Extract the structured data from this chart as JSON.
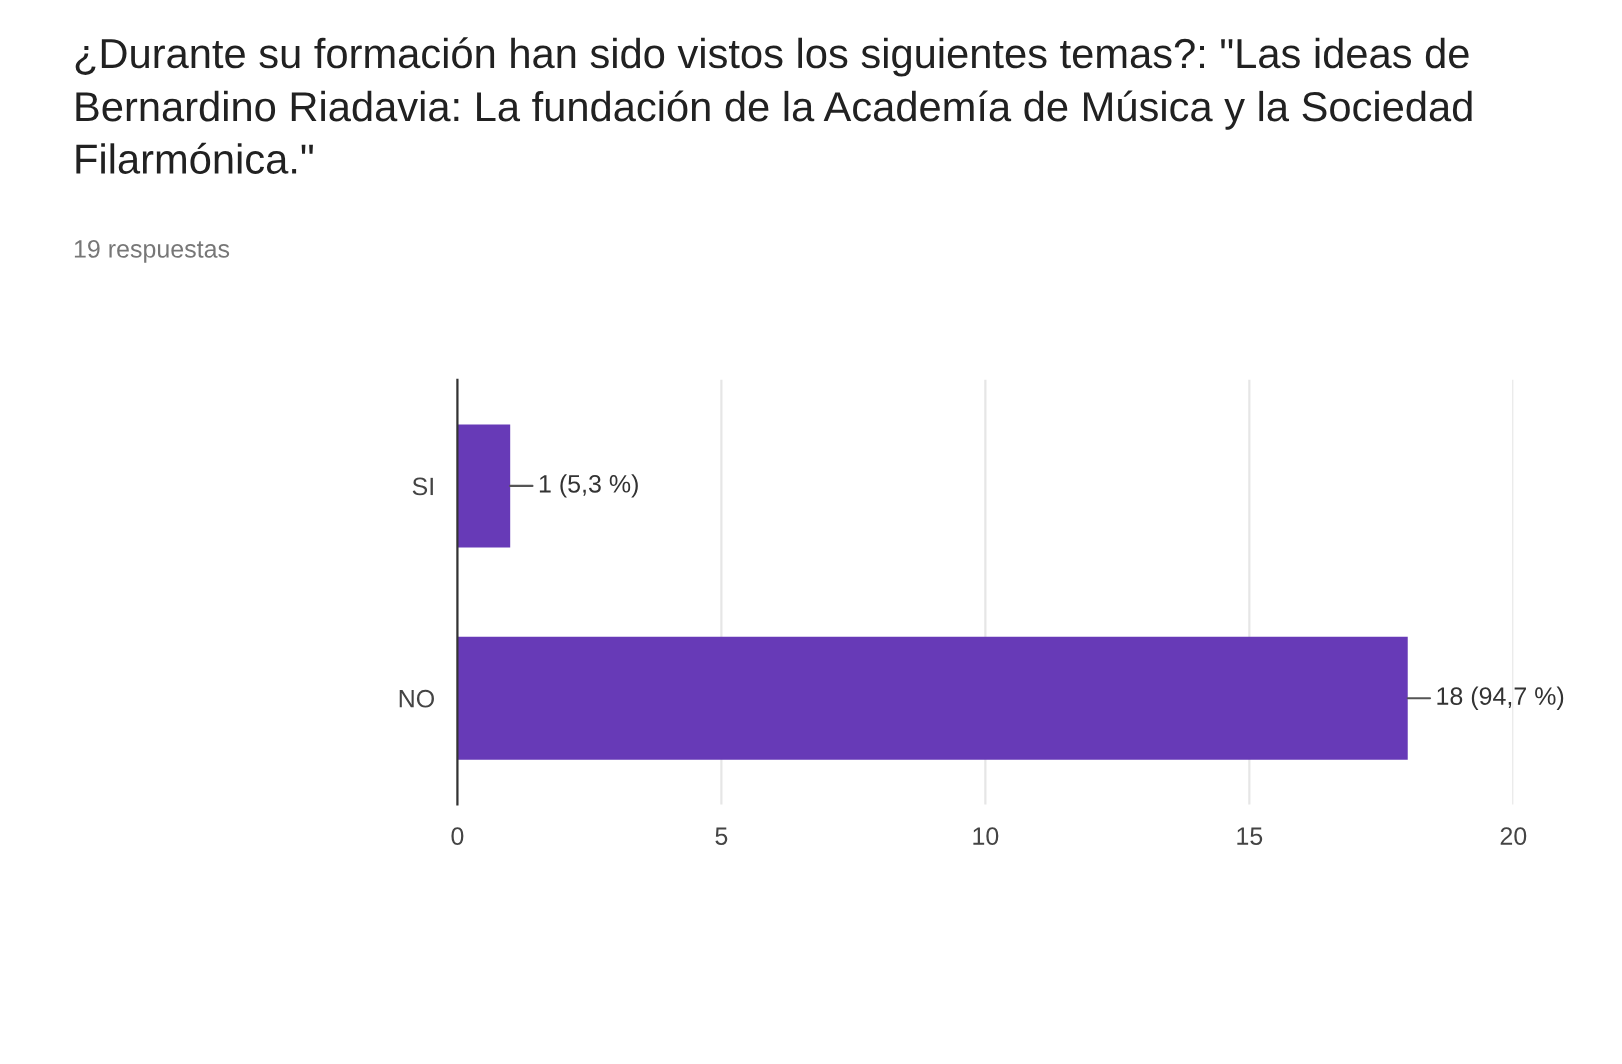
{
  "chart_data": {
    "type": "bar",
    "orientation": "horizontal",
    "title": "¿Durante su formación han sido vistos los siguientes temas?: \"Las ideas de Bernardino Riadavia: La fundación de la Academía de Música y la Sociedad Filarmónica.\"",
    "subtitle": "19 respuestas",
    "categories": [
      "SI",
      "NO"
    ],
    "values": [
      1,
      18
    ],
    "value_labels": [
      "1 (5,3 %)",
      "18 (94,7 %)"
    ],
    "color": "#673ab7",
    "xlim": [
      0,
      20
    ],
    "xticks": [
      0,
      5,
      10,
      15,
      20
    ],
    "grid": "x"
  }
}
